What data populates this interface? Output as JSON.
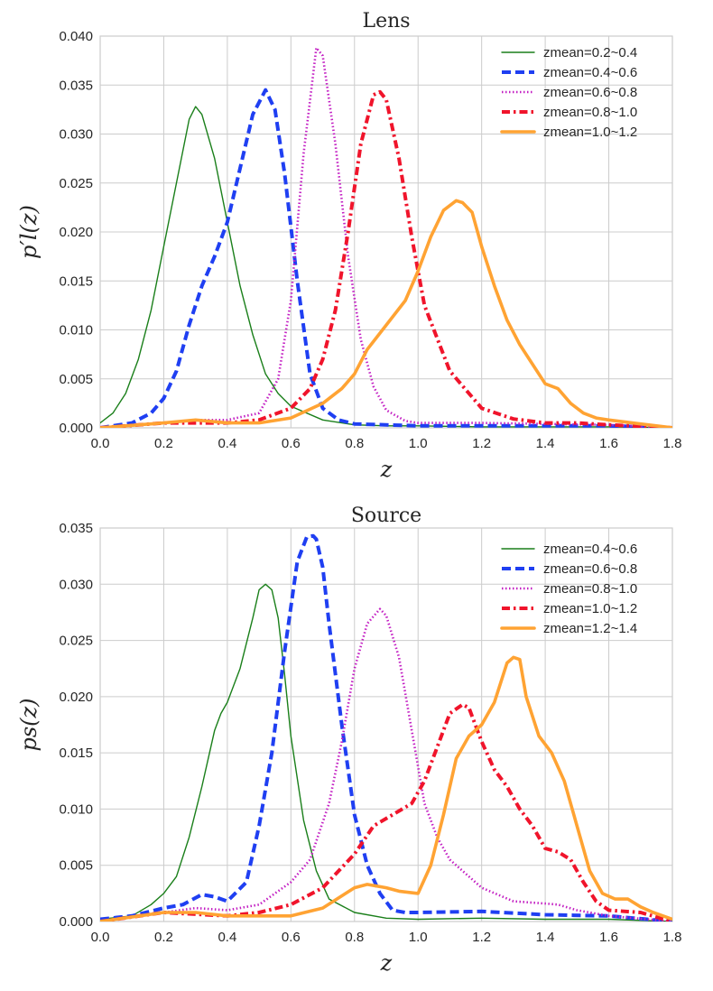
{
  "chart_data": [
    {
      "type": "line",
      "title": "Lens",
      "xlabel": "z",
      "ylabel": "p′l(z)",
      "xlim": [
        0.0,
        1.8
      ],
      "ylim": [
        0.0,
        0.04
      ],
      "xticks": [
        "0.0",
        "0.2",
        "0.4",
        "0.6",
        "0.8",
        "1.0",
        "1.2",
        "1.4",
        "1.6",
        "1.8"
      ],
      "yticks": [
        "0.000",
        "0.005",
        "0.010",
        "0.015",
        "0.020",
        "0.025",
        "0.030",
        "0.035",
        "0.040"
      ],
      "grid": true,
      "legend_position": "top-right",
      "series": [
        {
          "name": "zmean=0.2~0.4",
          "color": "#1a7f1a",
          "style": "solid-thin",
          "x": [
            0.0,
            0.04,
            0.08,
            0.12,
            0.16,
            0.2,
            0.24,
            0.28,
            0.3,
            0.32,
            0.36,
            0.4,
            0.44,
            0.48,
            0.52,
            0.56,
            0.6,
            0.7,
            0.8,
            0.9,
            1.0,
            1.2,
            1.4,
            1.6,
            1.8
          ],
          "y": [
            0.0005,
            0.0015,
            0.0035,
            0.007,
            0.012,
            0.0185,
            0.025,
            0.0315,
            0.0328,
            0.032,
            0.0275,
            0.021,
            0.0145,
            0.0095,
            0.0055,
            0.0035,
            0.0022,
            0.0008,
            0.0003,
            0.0002,
            0.0002,
            0.0001,
            0.0001,
            0.0001,
            0.0
          ]
        },
        {
          "name": "zmean=0.4~0.6",
          "color": "#1f3ff2",
          "style": "dashed",
          "x": [
            0.0,
            0.1,
            0.16,
            0.2,
            0.24,
            0.28,
            0.32,
            0.36,
            0.4,
            0.44,
            0.48,
            0.52,
            0.55,
            0.58,
            0.62,
            0.66,
            0.7,
            0.75,
            0.8,
            1.0,
            1.2,
            1.4,
            1.6,
            1.8
          ],
          "y": [
            0.0,
            0.0005,
            0.0015,
            0.003,
            0.0058,
            0.0105,
            0.0145,
            0.0175,
            0.021,
            0.0265,
            0.032,
            0.0345,
            0.0325,
            0.026,
            0.015,
            0.0055,
            0.002,
            0.0008,
            0.0004,
            0.0002,
            0.0002,
            0.0002,
            0.0002,
            0.0
          ]
        },
        {
          "name": "zmean=0.6~0.8",
          "color": "#c31fc3",
          "style": "dotted",
          "x": [
            0.0,
            0.2,
            0.3,
            0.4,
            0.5,
            0.56,
            0.6,
            0.64,
            0.68,
            0.7,
            0.74,
            0.78,
            0.82,
            0.86,
            0.9,
            0.96,
            1.0,
            1.1,
            1.2,
            1.4,
            1.6,
            1.8
          ],
          "y": [
            0.0,
            0.0005,
            0.0008,
            0.0008,
            0.0015,
            0.005,
            0.013,
            0.028,
            0.0388,
            0.038,
            0.029,
            0.0175,
            0.009,
            0.0042,
            0.0018,
            0.0007,
            0.0005,
            0.0005,
            0.0005,
            0.0004,
            0.0003,
            0.0
          ]
        },
        {
          "name": "zmean=0.8~1.0",
          "color": "#f0142b",
          "style": "dashdot",
          "x": [
            0.0,
            0.2,
            0.4,
            0.5,
            0.6,
            0.66,
            0.7,
            0.74,
            0.78,
            0.82,
            0.86,
            0.88,
            0.9,
            0.94,
            0.98,
            1.02,
            1.1,
            1.2,
            1.3,
            1.4,
            1.5,
            1.6,
            1.8
          ],
          "y": [
            0.0,
            0.0005,
            0.0005,
            0.0008,
            0.002,
            0.004,
            0.007,
            0.012,
            0.02,
            0.029,
            0.034,
            0.0343,
            0.0335,
            0.0275,
            0.0195,
            0.0125,
            0.0058,
            0.002,
            0.0009,
            0.0005,
            0.0005,
            0.0003,
            0.0
          ]
        },
        {
          "name": "zmean=1.0~1.2",
          "color": "#ffa333",
          "style": "solid-thick",
          "x": [
            0.0,
            0.2,
            0.3,
            0.4,
            0.5,
            0.6,
            0.7,
            0.76,
            0.8,
            0.84,
            0.9,
            0.96,
            1.0,
            1.04,
            1.08,
            1.12,
            1.14,
            1.17,
            1.2,
            1.24,
            1.28,
            1.32,
            1.36,
            1.4,
            1.44,
            1.48,
            1.52,
            1.56,
            1.6,
            1.7,
            1.8
          ],
          "y": [
            0.0,
            0.0005,
            0.0008,
            0.0005,
            0.0005,
            0.001,
            0.0025,
            0.004,
            0.0055,
            0.008,
            0.0105,
            0.013,
            0.016,
            0.0195,
            0.0222,
            0.0232,
            0.023,
            0.022,
            0.0185,
            0.0145,
            0.011,
            0.0085,
            0.0065,
            0.0045,
            0.004,
            0.0025,
            0.0015,
            0.001,
            0.0008,
            0.0004,
            0.0
          ]
        }
      ]
    },
    {
      "type": "line",
      "title": "Source",
      "xlabel": "z",
      "ylabel": "ps(z)",
      "xlim": [
        0.0,
        1.8
      ],
      "ylim": [
        0.0,
        0.035
      ],
      "xticks": [
        "0.0",
        "0.2",
        "0.4",
        "0.6",
        "0.8",
        "1.0",
        "1.2",
        "1.4",
        "1.6",
        "1.8"
      ],
      "yticks": [
        "0.000",
        "0.005",
        "0.010",
        "0.015",
        "0.020",
        "0.025",
        "0.030",
        "0.035"
      ],
      "grid": true,
      "legend_position": "top-right",
      "series": [
        {
          "name": "zmean=0.4~0.6",
          "color": "#1a7f1a",
          "style": "solid-thin",
          "x": [
            0.0,
            0.1,
            0.16,
            0.2,
            0.24,
            0.28,
            0.32,
            0.36,
            0.38,
            0.4,
            0.44,
            0.48,
            0.5,
            0.52,
            0.54,
            0.56,
            0.58,
            0.6,
            0.64,
            0.68,
            0.72,
            0.8,
            0.9,
            1.0,
            1.2,
            1.4,
            1.6,
            1.8
          ],
          "y": [
            0.0002,
            0.0005,
            0.0015,
            0.0025,
            0.004,
            0.0075,
            0.012,
            0.017,
            0.0185,
            0.0195,
            0.0225,
            0.027,
            0.0295,
            0.03,
            0.0295,
            0.027,
            0.022,
            0.0165,
            0.009,
            0.0045,
            0.002,
            0.0008,
            0.0003,
            0.0002,
            0.0003,
            0.0002,
            0.0002,
            0.0
          ]
        },
        {
          "name": "zmean=0.6~0.8",
          "color": "#1f3ff2",
          "style": "dashed",
          "x": [
            0.0,
            0.1,
            0.2,
            0.26,
            0.32,
            0.36,
            0.4,
            0.46,
            0.5,
            0.54,
            0.58,
            0.62,
            0.65,
            0.67,
            0.68,
            0.7,
            0.72,
            0.76,
            0.8,
            0.84,
            0.88,
            0.92,
            0.96,
            1.0,
            1.2,
            1.4,
            1.6,
            1.8
          ],
          "y": [
            0.0002,
            0.0005,
            0.0012,
            0.0015,
            0.0024,
            0.0022,
            0.0018,
            0.0035,
            0.0085,
            0.015,
            0.024,
            0.032,
            0.0342,
            0.0343,
            0.034,
            0.0315,
            0.0265,
            0.0175,
            0.0095,
            0.005,
            0.0025,
            0.001,
            0.0008,
            0.0008,
            0.0009,
            0.0006,
            0.0005,
            0.0
          ]
        },
        {
          "name": "zmean=0.8~1.0",
          "color": "#c31fc3",
          "style": "dotted",
          "x": [
            0.0,
            0.2,
            0.3,
            0.4,
            0.5,
            0.6,
            0.66,
            0.72,
            0.76,
            0.8,
            0.84,
            0.88,
            0.9,
            0.94,
            0.98,
            1.02,
            1.06,
            1.1,
            1.2,
            1.3,
            1.4,
            1.44,
            1.5,
            1.6,
            1.8
          ],
          "y": [
            0.0,
            0.0008,
            0.0012,
            0.001,
            0.0015,
            0.0035,
            0.0055,
            0.0105,
            0.016,
            0.0225,
            0.0265,
            0.0278,
            0.0272,
            0.0235,
            0.017,
            0.0105,
            0.0075,
            0.0055,
            0.003,
            0.0018,
            0.0016,
            0.0015,
            0.001,
            0.0005,
            0.0
          ]
        },
        {
          "name": "zmean=1.0~1.2",
          "color": "#f0142b",
          "style": "dashdot",
          "x": [
            0.0,
            0.2,
            0.4,
            0.5,
            0.6,
            0.7,
            0.8,
            0.86,
            0.92,
            0.98,
            1.02,
            1.06,
            1.1,
            1.14,
            1.16,
            1.2,
            1.24,
            1.28,
            1.32,
            1.36,
            1.4,
            1.44,
            1.48,
            1.52,
            1.56,
            1.6,
            1.7,
            1.8
          ],
          "y": [
            0.0,
            0.0008,
            0.0005,
            0.0008,
            0.0015,
            0.003,
            0.006,
            0.0085,
            0.0095,
            0.0105,
            0.0125,
            0.0155,
            0.0185,
            0.0193,
            0.019,
            0.016,
            0.0135,
            0.012,
            0.01,
            0.0085,
            0.0065,
            0.0062,
            0.0055,
            0.0035,
            0.0018,
            0.001,
            0.0008,
            0.0
          ]
        },
        {
          "name": "zmean=1.2~1.4",
          "color": "#ffa333",
          "style": "solid-thick",
          "x": [
            0.0,
            0.2,
            0.3,
            0.4,
            0.5,
            0.6,
            0.7,
            0.8,
            0.84,
            0.9,
            0.94,
            1.0,
            1.04,
            1.08,
            1.12,
            1.16,
            1.2,
            1.24,
            1.28,
            1.3,
            1.32,
            1.34,
            1.38,
            1.42,
            1.46,
            1.5,
            1.54,
            1.58,
            1.62,
            1.66,
            1.7,
            1.74,
            1.8
          ],
          "y": [
            0.0,
            0.0008,
            0.0008,
            0.0005,
            0.0005,
            0.0005,
            0.0012,
            0.003,
            0.0033,
            0.003,
            0.0027,
            0.0025,
            0.005,
            0.0095,
            0.0145,
            0.0165,
            0.0175,
            0.0195,
            0.023,
            0.0235,
            0.0233,
            0.02,
            0.0165,
            0.015,
            0.0125,
            0.0085,
            0.0045,
            0.0025,
            0.002,
            0.002,
            0.0013,
            0.0008,
            0.0002
          ]
        }
      ]
    }
  ]
}
